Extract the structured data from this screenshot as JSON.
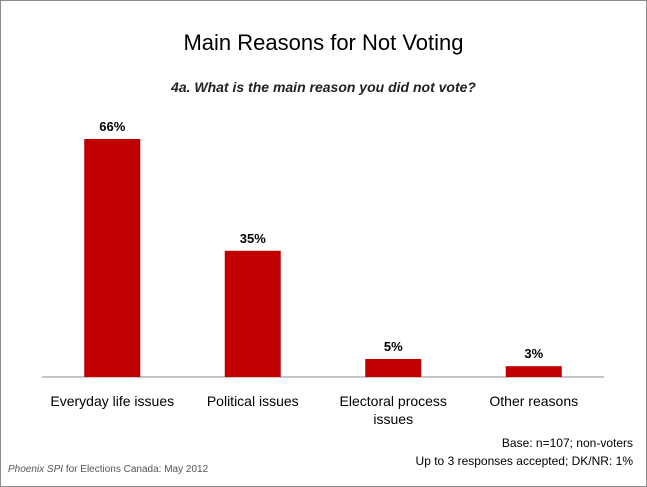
{
  "chart_data": {
    "type": "bar",
    "title": "Main Reasons for Not Voting",
    "subtitle": "4a. What is the main reason you did not vote?",
    "categories": [
      "Everyday life issues",
      "Political issues",
      "Electoral process issues",
      "Other reasons"
    ],
    "values": [
      66,
      35,
      5,
      3
    ],
    "data_labels": [
      "66%",
      "35%",
      "5%",
      "3%"
    ],
    "xlabel": "",
    "ylabel": "",
    "ylim": [
      0,
      70
    ],
    "grid": false,
    "bar_color": "#c00000"
  },
  "footer": {
    "source_italic": "Phoenix SPI",
    "source_rest": " for Elections Canada: May 2012",
    "base_note": "Base: n=107; non-voters",
    "responses_note": "Up to 3 responses accepted; DK/NR: 1%"
  }
}
